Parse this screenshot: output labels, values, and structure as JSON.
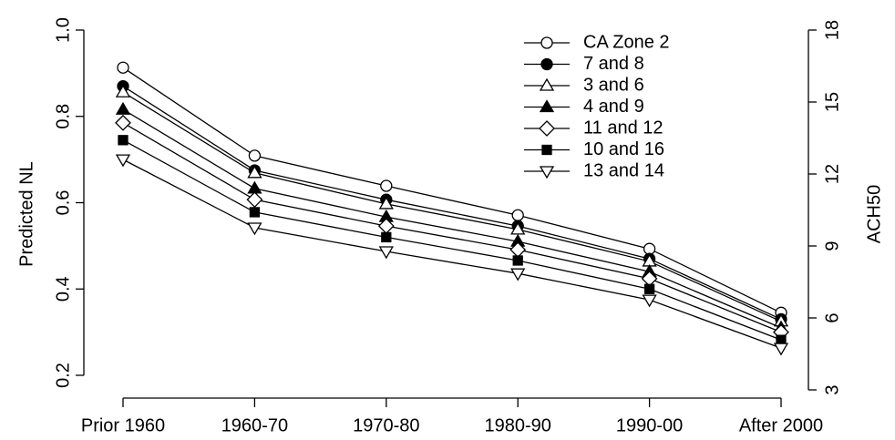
{
  "chart_data": {
    "type": "line",
    "categories": [
      "Prior 1960",
      "1960-70",
      "1970-80",
      "1980-90",
      "1990-00",
      "After 2000"
    ],
    "y_label": "Predicted NL",
    "y2_label": "ACH50",
    "ylim": [
      0.2,
      1.0
    ],
    "yticks": [
      0.2,
      0.4,
      0.6,
      0.8,
      {
        "value": 1,
        "label": "1.0"
      }
    ],
    "y2lim": [
      3,
      18
    ],
    "y2ticks": [
      3,
      6,
      9,
      12,
      15,
      18
    ],
    "legend": "top-right",
    "series": [
      {
        "name": "CA Zone 2",
        "color": "#000000",
        "marker": "circle-open",
        "values": [
          0.913,
          0.709,
          0.639,
          0.571,
          0.493,
          0.345
        ]
      },
      {
        "name": "7 and 8",
        "color": "#000000",
        "marker": "circle-filled",
        "values": [
          0.87,
          0.675,
          0.607,
          0.546,
          0.47,
          0.33
        ]
      },
      {
        "name": "3 and 6",
        "color": "#000000",
        "marker": "triangle-open",
        "values": [
          0.856,
          0.669,
          0.597,
          0.538,
          0.464,
          0.325
        ]
      },
      {
        "name": "4 and 9",
        "color": "#000000",
        "marker": "triangle-filled",
        "values": [
          0.816,
          0.633,
          0.567,
          0.51,
          0.44,
          0.31
        ]
      },
      {
        "name": "11 and 12",
        "color": "#000000",
        "marker": "diamond-open",
        "values": [
          0.785,
          0.607,
          0.546,
          0.491,
          0.424,
          0.3
        ]
      },
      {
        "name": "10 and 16",
        "color": "#000000",
        "marker": "square-filled",
        "values": [
          0.745,
          0.578,
          0.52,
          0.466,
          0.4,
          0.282
        ]
      },
      {
        "name": "13 and 14",
        "color": "#000000",
        "marker": "triangle-down-open",
        "values": [
          0.7,
          0.542,
          0.487,
          0.436,
          0.375,
          0.263
        ]
      }
    ]
  }
}
